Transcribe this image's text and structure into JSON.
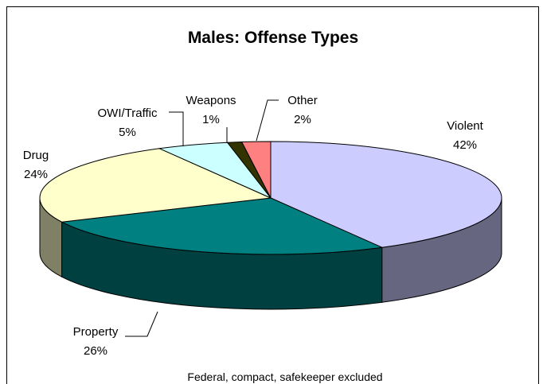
{
  "chart_data": {
    "type": "pie3d",
    "title": "Males: Offense Types",
    "categories": [
      "Violent",
      "Property",
      "Drug",
      "OWI/Traffic",
      "Weapons",
      "Other"
    ],
    "values": [
      42,
      26,
      24,
      5,
      1,
      2
    ],
    "value_labels": [
      "42%",
      "26%",
      "24%",
      "5%",
      "1%",
      "2%"
    ],
    "colors": [
      "#ccccff",
      "#008080",
      "#ffffcc",
      "#ccffff",
      "#333300",
      "#ff8080"
    ],
    "note": "Federal, compact, safekeeper excluded"
  }
}
